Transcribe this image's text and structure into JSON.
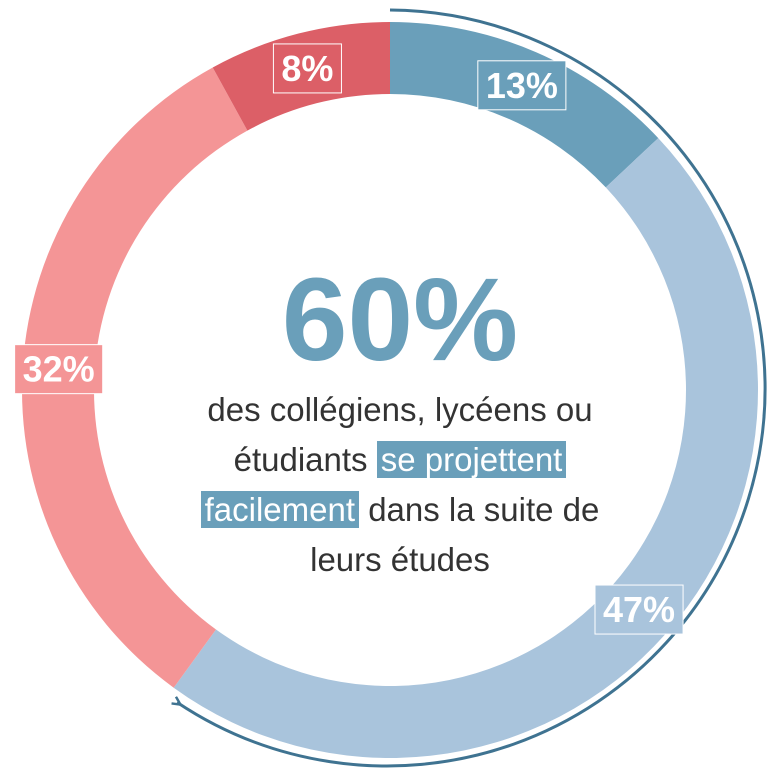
{
  "chart_data": {
    "type": "donut",
    "categories": [
      null,
      null,
      null,
      null
    ],
    "values": [
      13,
      47,
      32,
      8
    ],
    "value_labels": [
      "13%",
      "47%",
      "32%",
      "8%"
    ],
    "colors": [
      "#6a9fba",
      "#a9c4dc",
      "#f49596",
      "#dc5f67"
    ],
    "center_value": {
      "value": 60,
      "label": "60%"
    },
    "center_color": "#6a9fba",
    "description_lines": [
      [
        {
          "text": "des collégiens, lycéens ou"
        }
      ],
      [
        {
          "text": "étudiants "
        },
        {
          "text": "se projettent",
          "highlight": true
        }
      ],
      [
        {
          "text": "facilement",
          "highlight": true
        },
        {
          "text": " dans la suite de"
        }
      ],
      [
        {
          "text": "leurs études"
        }
      ]
    ]
  }
}
